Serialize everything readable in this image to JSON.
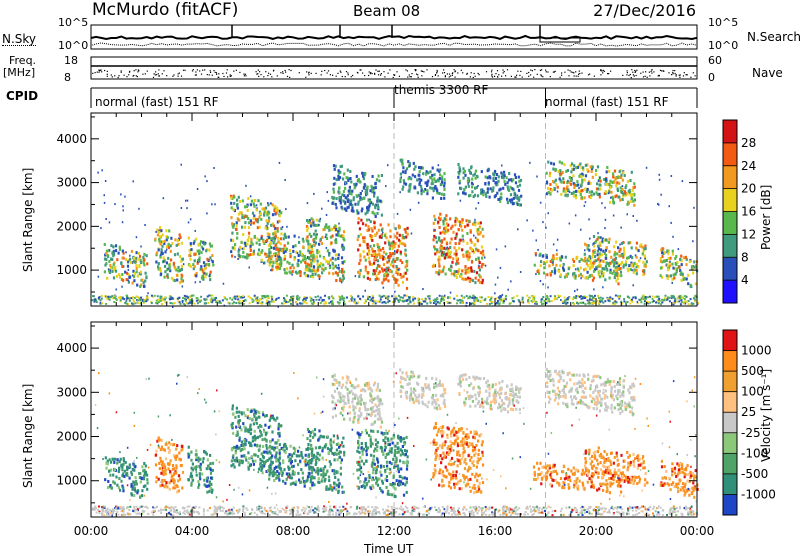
{
  "header": {
    "station": "McMurdo (fitACF)",
    "beam": "Beam 08",
    "date": "27/Dec/2016"
  },
  "noise_panel": {
    "left_label": "N.Sky",
    "right_label": "N.Search",
    "left_ticks": [
      "10^5",
      "10^0"
    ],
    "right_ticks": [
      "10^5",
      "10^0"
    ]
  },
  "freq_panel": {
    "left_label_1": "Freq.",
    "left_label_2": "[MHz]",
    "right_label": "Nave",
    "left_ticks": [
      "18",
      "8"
    ],
    "right_ticks": [
      "60",
      "0"
    ]
  },
  "cpid_panel": {
    "label": "CPID",
    "segments": [
      {
        "name": "normal (fast) 151 RF",
        "start": "00:00",
        "end": "12:00"
      },
      {
        "name": "themis 3300 RF",
        "start": "12:00",
        "end": "18:00"
      },
      {
        "name": "normal (fast) 151 RF",
        "start": "18:00",
        "end": "00:00"
      }
    ]
  },
  "x_axis": {
    "label": "Time UT",
    "ticks": [
      "00:00",
      "04:00",
      "08:00",
      "12:00",
      "16:00",
      "20:00",
      "00:00"
    ]
  },
  "chart_data": [
    {
      "type": "heatmap",
      "panel": "power",
      "ylabel": "Slant Range [km]",
      "ylim": [
        180,
        4590
      ],
      "yticks": [
        1000,
        2000,
        3000,
        4000
      ],
      "x_range_hours": [
        0,
        24
      ],
      "colorbar": {
        "label": "Power [dB]",
        "ticks": [
          "4",
          "8",
          "12",
          "16",
          "20",
          "24",
          "28"
        ],
        "colors": [
          "#1f10ff",
          "#2850b8",
          "#3f9a7e",
          "#58b84d",
          "#e8d21f",
          "#f29a1f",
          "#f35a12",
          "#d41414"
        ]
      },
      "blobs": [
        {
          "t": [
            0.5,
            2.2
          ],
          "r": [
            700,
            1500
          ],
          "level": "mixed"
        },
        {
          "t": [
            2.5,
            3.6
          ],
          "r": [
            800,
            1900
          ],
          "level": "mixed"
        },
        {
          "t": [
            3.8,
            4.8
          ],
          "r": [
            800,
            1700
          ],
          "level": "mixed"
        },
        {
          "t": [
            5.5,
            7.5
          ],
          "r": [
            1200,
            2600
          ],
          "level": "mixed"
        },
        {
          "t": [
            7.0,
            8.8
          ],
          "r": [
            900,
            1800
          ],
          "level": "mixed"
        },
        {
          "t": [
            8.5,
            10.0
          ],
          "r": [
            800,
            2100
          ],
          "level": "mixed"
        },
        {
          "t": [
            9.5,
            11.5
          ],
          "r": [
            2300,
            3300
          ],
          "level": "low"
        },
        {
          "t": [
            10.5,
            12.5
          ],
          "r": [
            700,
            2100
          ],
          "level": "high"
        },
        {
          "t": [
            12.2,
            14.0
          ],
          "r": [
            2700,
            3400
          ],
          "level": "low"
        },
        {
          "t": [
            13.5,
            15.5
          ],
          "r": [
            800,
            2200
          ],
          "level": "high"
        },
        {
          "t": [
            14.5,
            17.0
          ],
          "r": [
            2600,
            3300
          ],
          "level": "low"
        },
        {
          "t": [
            17.5,
            21.0
          ],
          "r": [
            800,
            1300
          ],
          "level": "mixed"
        },
        {
          "t": [
            18.0,
            21.5
          ],
          "r": [
            2600,
            3400
          ],
          "level": "mixed"
        },
        {
          "t": [
            19.5,
            22.0
          ],
          "r": [
            1000,
            1700
          ],
          "level": "mixed"
        },
        {
          "t": [
            22.5,
            24.0
          ],
          "r": [
            700,
            1400
          ],
          "level": "mixed"
        }
      ]
    },
    {
      "type": "heatmap",
      "panel": "velocity",
      "ylabel": "Slant Range [km]",
      "ylim": [
        180,
        4590
      ],
      "yticks": [
        1000,
        2000,
        3000,
        4000
      ],
      "x_range_hours": [
        0,
        24
      ],
      "colorbar": {
        "label": "Velocity [m s⁻¹]",
        "ticks": [
          "1000",
          "500",
          "100",
          "25",
          "-25",
          "-100",
          "-500",
          "-1000"
        ],
        "colors": [
          "#2046c8",
          "#2f8f78",
          "#4fa268",
          "#8cc87a",
          "#c8c8c8",
          "#ffc080",
          "#f0a030",
          "#ff8c1a",
          "#e01414"
        ]
      },
      "blobs": [
        {
          "t": [
            0.5,
            2.2
          ],
          "r": [
            700,
            1500
          ],
          "level": "toward"
        },
        {
          "t": [
            2.5,
            3.6
          ],
          "r": [
            800,
            1900
          ],
          "level": "away"
        },
        {
          "t": [
            3.8,
            4.8
          ],
          "r": [
            800,
            1700
          ],
          "level": "toward"
        },
        {
          "t": [
            5.5,
            7.5
          ],
          "r": [
            1200,
            2600
          ],
          "level": "toward"
        },
        {
          "t": [
            7.0,
            8.8
          ],
          "r": [
            900,
            1800
          ],
          "level": "toward"
        },
        {
          "t": [
            8.5,
            10.0
          ],
          "r": [
            800,
            2100
          ],
          "level": "toward"
        },
        {
          "t": [
            9.5,
            11.5
          ],
          "r": [
            2300,
            3300
          ],
          "level": "zero"
        },
        {
          "t": [
            10.5,
            12.5
          ],
          "r": [
            700,
            2100
          ],
          "level": "toward"
        },
        {
          "t": [
            12.2,
            14.0
          ],
          "r": [
            2700,
            3400
          ],
          "level": "zero"
        },
        {
          "t": [
            13.5,
            15.5
          ],
          "r": [
            800,
            2200
          ],
          "level": "away"
        },
        {
          "t": [
            14.5,
            17.0
          ],
          "r": [
            2600,
            3300
          ],
          "level": "zero"
        },
        {
          "t": [
            17.5,
            21.0
          ],
          "r": [
            800,
            1300
          ],
          "level": "away"
        },
        {
          "t": [
            18.0,
            21.5
          ],
          "r": [
            2600,
            3400
          ],
          "level": "zero"
        },
        {
          "t": [
            19.5,
            22.0
          ],
          "r": [
            1000,
            1700
          ],
          "level": "away"
        },
        {
          "t": [
            22.5,
            24.0
          ],
          "r": [
            700,
            1400
          ],
          "level": "away"
        }
      ]
    }
  ]
}
